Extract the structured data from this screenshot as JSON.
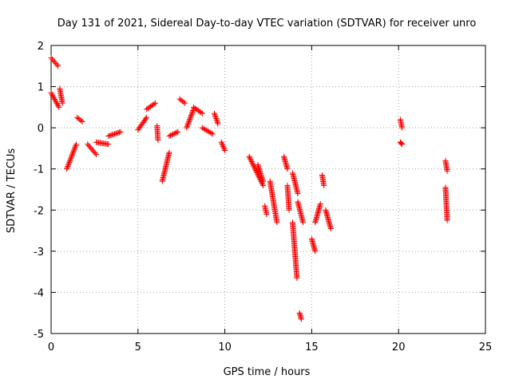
{
  "chart_data": {
    "type": "scatter",
    "title": "Day 131 of 2021, Sidereal Day-to-day VTEC variation (SDTVAR) for receiver unro",
    "xlabel": "GPS time / hours",
    "ylabel": "SDTVAR / TECUs",
    "xlim": [
      0,
      25
    ],
    "ylim": [
      -5,
      2
    ],
    "xticks": [
      0,
      5,
      10,
      15,
      20,
      25
    ],
    "yticks": [
      -5,
      -4,
      -3,
      -2,
      -1,
      0,
      1,
      2
    ],
    "grid": true,
    "marker": "+",
    "color": "#ff0000",
    "series": [
      {
        "name": "SDTVAR",
        "segments": [
          {
            "x": [
              0.0,
              0.4
            ],
            "y": [
              1.7,
              1.5
            ]
          },
          {
            "x": [
              0.0,
              0.45
            ],
            "y": [
              0.85,
              0.5
            ]
          },
          {
            "x": [
              0.5,
              0.65
            ],
            "y": [
              0.95,
              0.6
            ]
          },
          {
            "x": [
              0.9,
              1.45
            ],
            "y": [
              -1.0,
              -0.4
            ]
          },
          {
            "x": [
              1.5,
              1.8
            ],
            "y": [
              0.25,
              0.15
            ]
          },
          {
            "x": [
              2.1,
              2.6
            ],
            "y": [
              -0.4,
              -0.65
            ]
          },
          {
            "x": [
              2.6,
              3.3
            ],
            "y": [
              -0.35,
              -0.4
            ]
          },
          {
            "x": [
              3.3,
              4.0
            ],
            "y": [
              -0.2,
              -0.1
            ]
          },
          {
            "x": [
              5.0,
              5.5
            ],
            "y": [
              -0.05,
              0.25
            ]
          },
          {
            "x": [
              5.5,
              6.0
            ],
            "y": [
              0.45,
              0.6
            ]
          },
          {
            "x": [
              6.1,
              6.15
            ],
            "y": [
              0.05,
              -0.3
            ]
          },
          {
            "x": [
              6.4,
              6.8
            ],
            "y": [
              -1.3,
              -0.6
            ]
          },
          {
            "x": [
              6.8,
              7.3
            ],
            "y": [
              -0.2,
              -0.1
            ]
          },
          {
            "x": [
              7.4,
              7.7
            ],
            "y": [
              0.7,
              0.6
            ]
          },
          {
            "x": [
              7.8,
              8.2
            ],
            "y": [
              0.0,
              0.45
            ]
          },
          {
            "x": [
              8.2,
              8.7
            ],
            "y": [
              0.5,
              0.35
            ]
          },
          {
            "x": [
              8.7,
              9.3
            ],
            "y": [
              0.0,
              -0.15
            ]
          },
          {
            "x": [
              9.4,
              9.6
            ],
            "y": [
              0.35,
              0.1
            ]
          },
          {
            "x": [
              9.8,
              10.0
            ],
            "y": [
              -0.35,
              -0.55
            ]
          },
          {
            "x": [
              11.4,
              12.2
            ],
            "y": [
              -0.7,
              -1.4
            ]
          },
          {
            "x": [
              11.9,
              12.2
            ],
            "y": [
              -0.9,
              -1.3
            ]
          },
          {
            "x": [
              12.3,
              12.4
            ],
            "y": [
              -1.9,
              -2.1
            ]
          },
          {
            "x": [
              12.6,
              13.0
            ],
            "y": [
              -1.3,
              -2.3
            ]
          },
          {
            "x": [
              13.4,
              13.6
            ],
            "y": [
              -0.7,
              -1.0
            ]
          },
          {
            "x": [
              13.6,
              13.7
            ],
            "y": [
              -1.4,
              -2.0
            ]
          },
          {
            "x": [
              13.9,
              14.2
            ],
            "y": [
              -1.1,
              -1.6
            ]
          },
          {
            "x": [
              14.2,
              14.5
            ],
            "y": [
              -1.8,
              -2.3
            ]
          },
          {
            "x": [
              13.9,
              14.15
            ],
            "y": [
              -2.3,
              -3.65
            ]
          },
          {
            "x": [
              14.3,
              14.4
            ],
            "y": [
              -4.5,
              -4.65
            ]
          },
          {
            "x": [
              15.0,
              15.2
            ],
            "y": [
              -2.7,
              -3.0
            ]
          },
          {
            "x": [
              15.2,
              15.5
            ],
            "y": [
              -2.3,
              -1.85
            ]
          },
          {
            "x": [
              15.6,
              15.7
            ],
            "y": [
              -1.15,
              -1.4
            ]
          },
          {
            "x": [
              15.8,
              16.1
            ],
            "y": [
              -2.0,
              -2.45
            ]
          },
          {
            "x": [
              20.1,
              20.2
            ],
            "y": [
              0.2,
              0.0
            ]
          },
          {
            "x": [
              20.1,
              20.2
            ],
            "y": [
              -0.35,
              -0.4
            ]
          },
          {
            "x": [
              22.7,
              22.8
            ],
            "y": [
              -0.8,
              -1.05
            ]
          },
          {
            "x": [
              22.7,
              22.8
            ],
            "y": [
              -1.45,
              -2.25
            ]
          }
        ]
      }
    ]
  }
}
